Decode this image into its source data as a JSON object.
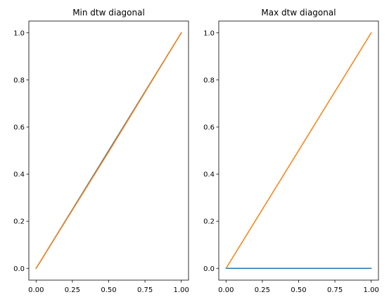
{
  "chart_data": [
    {
      "type": "line",
      "title": "Min dtw diagonal",
      "xlabel": "",
      "ylabel": "",
      "xlim": [
        -0.05,
        1.05
      ],
      "ylim": [
        -0.05,
        1.05
      ],
      "xticks": [
        0.0,
        0.25,
        0.5,
        0.75,
        1.0
      ],
      "xtick_labels": [
        "0.00",
        "0.25",
        "0.50",
        "0.75",
        "1.00"
      ],
      "yticks": [
        0.0,
        0.2,
        0.4,
        0.6,
        0.8,
        1.0
      ],
      "ytick_labels": [
        "0.0",
        "0.2",
        "0.4",
        "0.6",
        "0.8",
        "1.0"
      ],
      "grid": false,
      "legend": "none",
      "series": [
        {
          "color": "#1f77b4",
          "x": [
            0.0,
            1.0
          ],
          "y": [
            0.0,
            1.0
          ]
        },
        {
          "color": "#ff7f0e",
          "x": [
            0.0,
            0.5,
            1.0
          ],
          "y": [
            0.0,
            0.495,
            1.0
          ]
        }
      ]
    },
    {
      "type": "line",
      "title": "Max dtw diagonal",
      "xlabel": "",
      "ylabel": "",
      "xlim": [
        -0.05,
        1.05
      ],
      "ylim": [
        -0.05,
        1.05
      ],
      "xticks": [
        0.0,
        0.25,
        0.5,
        0.75,
        1.0
      ],
      "xtick_labels": [
        "0.00",
        "0.25",
        "0.50",
        "0.75",
        "1.00"
      ],
      "yticks": [
        0.0,
        0.2,
        0.4,
        0.6,
        0.8,
        1.0
      ],
      "ytick_labels": [
        "0.0",
        "0.2",
        "0.4",
        "0.6",
        "0.8",
        "1.0"
      ],
      "grid": false,
      "legend": "none",
      "series": [
        {
          "color": "#1f77b4",
          "x": [
            0.0,
            1.0
          ],
          "y": [
            0.0,
            0.0
          ]
        },
        {
          "color": "#ff7f0e",
          "x": [
            0.0,
            1.0
          ],
          "y": [
            0.0,
            1.0
          ]
        }
      ]
    }
  ]
}
